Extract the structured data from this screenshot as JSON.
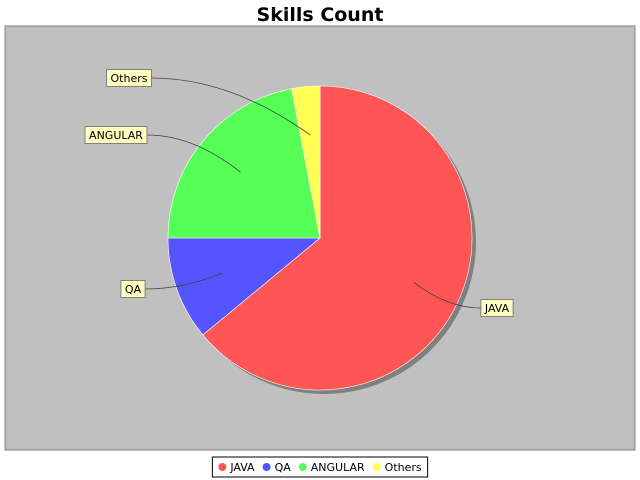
{
  "chart_data": {
    "type": "pie",
    "title": "Skills Count",
    "categories": [
      "JAVA",
      "QA",
      "ANGULAR",
      "Others"
    ],
    "values": [
      64,
      11,
      22,
      3
    ],
    "colors": [
      "#ff5555",
      "#5555ff",
      "#55ff55",
      "#ffff55"
    ],
    "legend": {
      "position": "bottom",
      "entries": [
        "JAVA",
        "QA",
        "ANGULAR",
        "Others"
      ]
    },
    "plot_background": "#c0c0c0",
    "label_background": "#ffffc0",
    "start_angle_deg": 90,
    "direction": "clockwise"
  }
}
